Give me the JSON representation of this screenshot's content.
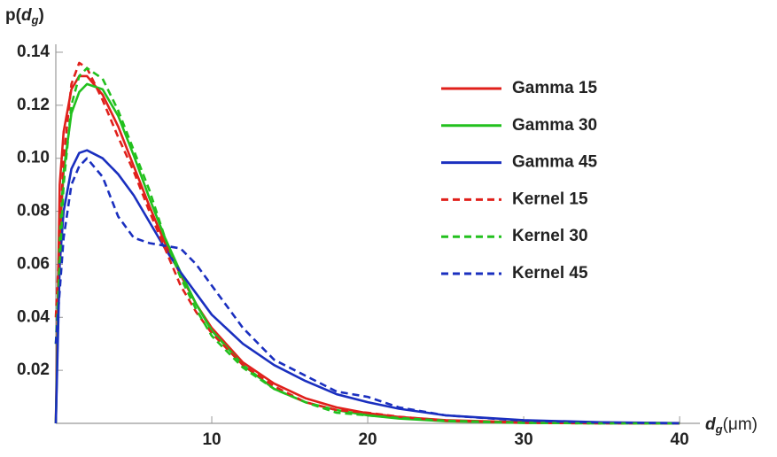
{
  "chart_data": {
    "type": "line",
    "y_label": [
      "p(",
      "d",
      "g",
      ")"
    ],
    "x_label": [
      "d",
      "g",
      "(μm)"
    ],
    "x": [
      0,
      0.25,
      0.5,
      1,
      1.5,
      2,
      3,
      4,
      5,
      6,
      7,
      8,
      9,
      10,
      12,
      14,
      16,
      18,
      20,
      22,
      25,
      30,
      35,
      40
    ],
    "xlim": [
      0,
      41.3
    ],
    "ylim": [
      0,
      0.143
    ],
    "xticks": [
      10,
      20,
      30,
      40
    ],
    "yticks": [
      0.02,
      0.04,
      0.06,
      0.08,
      {
        "value": 0.1,
        "label": "0.10"
      },
      0.12,
      0.14
    ],
    "series": [
      {
        "name": "Gamma 15",
        "color": "#e0201b",
        "dash": false,
        "values": [
          0,
          0.09,
          0.11,
          0.126,
          0.131,
          0.131,
          0.124,
          0.112,
          0.097,
          0.082,
          0.068,
          0.056,
          0.045,
          0.036,
          0.023,
          0.015,
          0.0095,
          0.006,
          0.0038,
          0.0024,
          0.0012,
          0.0004,
          0.0001,
          3e-05
        ]
      },
      {
        "name": "Gamma 30",
        "color": "#22c01e",
        "dash": false,
        "values": [
          0,
          0.07,
          0.095,
          0.117,
          0.125,
          0.128,
          0.126,
          0.116,
          0.101,
          0.085,
          0.07,
          0.057,
          0.045,
          0.035,
          0.022,
          0.013,
          0.008,
          0.005,
          0.003,
          0.0018,
          0.0008,
          0.0002,
          5e-05,
          0
        ]
      },
      {
        "name": "Gamma 45",
        "color": "#1a2fbf",
        "dash": false,
        "values": [
          0,
          0.06,
          0.08,
          0.096,
          0.102,
          0.103,
          0.1,
          0.094,
          0.086,
          0.076,
          0.066,
          0.057,
          0.049,
          0.041,
          0.03,
          0.022,
          0.016,
          0.011,
          0.008,
          0.0055,
          0.003,
          0.0012,
          0.0004,
          0.0001
        ]
      },
      {
        "name": "Kernel 15",
        "color": "#e0201b",
        "dash": true,
        "values": [
          0.04,
          0.07,
          0.1,
          0.128,
          0.136,
          0.134,
          0.122,
          0.108,
          0.095,
          0.08,
          0.066,
          0.052,
          0.042,
          0.034,
          0.022,
          0.014,
          0.008,
          0.005,
          0.004,
          0.0025,
          0.001,
          0.0002,
          0,
          0
        ]
      },
      {
        "name": "Kernel 30",
        "color": "#22c01e",
        "dash": true,
        "values": [
          0.03,
          0.06,
          0.09,
          0.12,
          0.131,
          0.134,
          0.13,
          0.118,
          0.103,
          0.088,
          0.07,
          0.055,
          0.043,
          0.033,
          0.021,
          0.013,
          0.008,
          0.004,
          0.003,
          0.002,
          0.001,
          0.0002,
          0,
          0
        ]
      },
      {
        "name": "Kernel 45",
        "color": "#1a2fbf",
        "dash": true,
        "values": [
          0.03,
          0.05,
          0.07,
          0.09,
          0.097,
          0.1,
          0.093,
          0.078,
          0.07,
          0.068,
          0.067,
          0.066,
          0.06,
          0.052,
          0.036,
          0.024,
          0.018,
          0.012,
          0.01,
          0.006,
          0.003,
          0.001,
          0.0003,
          0
        ]
      }
    ]
  }
}
